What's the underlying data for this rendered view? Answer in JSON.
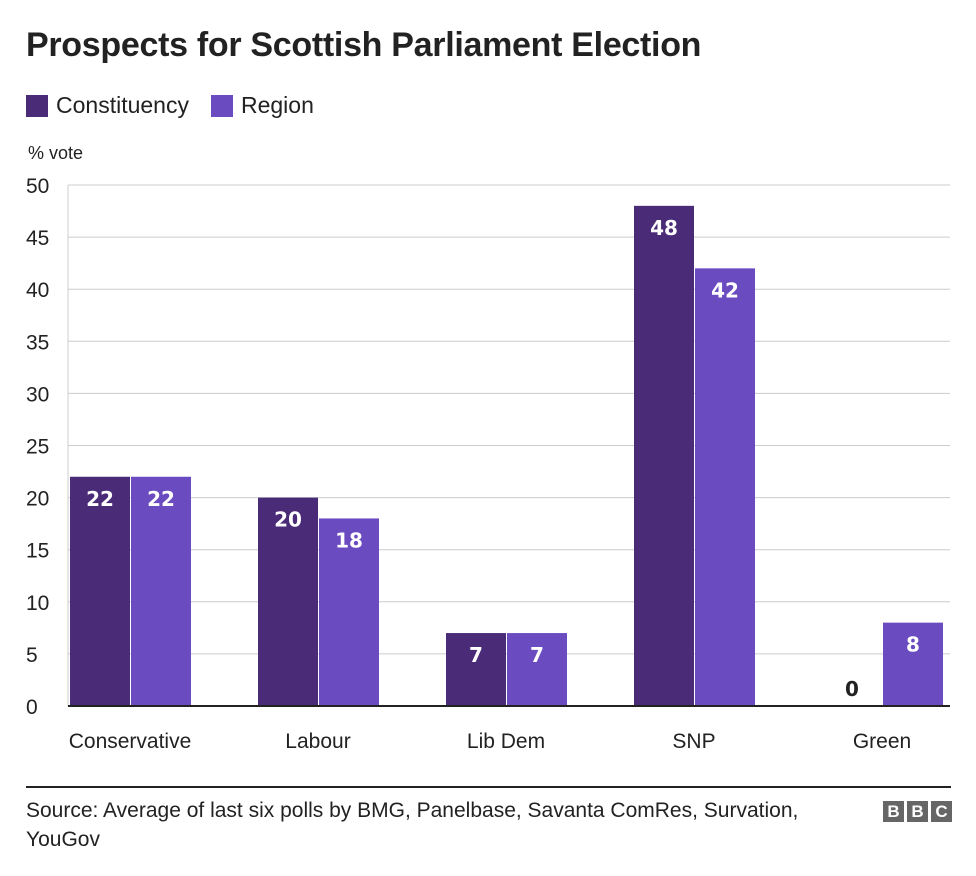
{
  "chart_data": {
    "type": "bar",
    "title": "Prospects for Scottish Parliament Election",
    "ylabel": "% vote",
    "xlabel": "",
    "categories": [
      "Conservative",
      "Labour",
      "Lib Dem",
      "SNP",
      "Green"
    ],
    "series": [
      {
        "name": "Constituency",
        "values": [
          22,
          20,
          7,
          48,
          0
        ],
        "color": "#4a2b78"
      },
      {
        "name": "Region",
        "values": [
          22,
          18,
          7,
          42,
          8
        ],
        "color": "#6a4bc0"
      }
    ],
    "ylim": [
      0,
      50
    ],
    "yticks": [
      0,
      5,
      10,
      15,
      20,
      25,
      30,
      35,
      40,
      45,
      50
    ],
    "grid": true,
    "legend_position": "top-left"
  },
  "source": "Source: Average of last six polls by BMG, Panelbase, Savanta ComRes, Survation, YouGov",
  "logo": {
    "letters": [
      "B",
      "B",
      "C"
    ]
  }
}
